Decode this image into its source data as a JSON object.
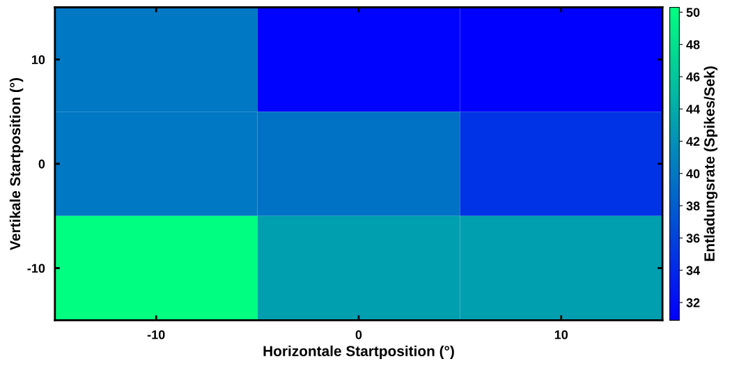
{
  "chart_data": {
    "type": "heatmap",
    "xlabel": "Horizontale Startposition (°)",
    "ylabel": "Vertikale Startposition (°)",
    "clabel": "Entladungsrate (Spikes/Sek)",
    "categories": [
      "-10",
      "0",
      "10"
    ],
    "y_categories": [
      "10",
      "0",
      "-10"
    ],
    "cells": [
      [
        40.0,
        31.2,
        30.9
      ],
      [
        40.0,
        39.6,
        34.8
      ],
      [
        50.3,
        43.0,
        43.0
      ]
    ],
    "clim": [
      30.9,
      50.3
    ],
    "cticks": [
      32,
      34,
      36,
      38,
      40,
      42,
      44,
      46,
      48,
      50
    ]
  }
}
